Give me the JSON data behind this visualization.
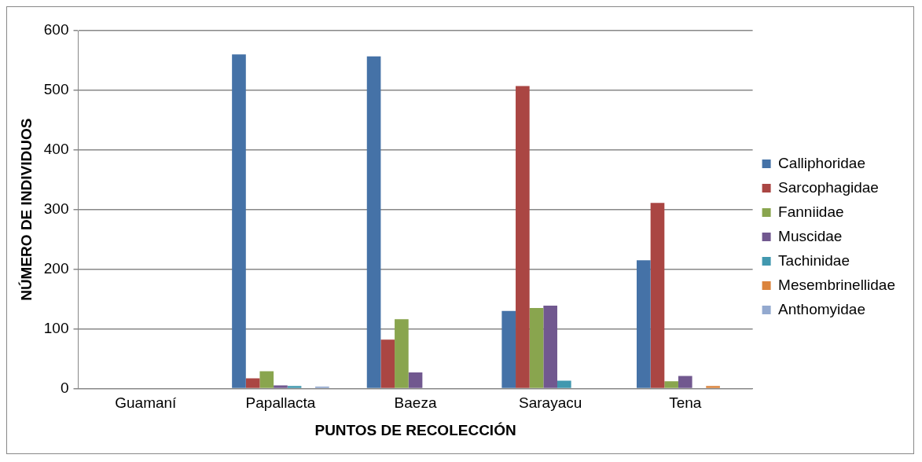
{
  "chart_data": {
    "type": "bar",
    "xlabel": "PUNTOS DE RECOLECCIÓN",
    "ylabel": "NÚMERO DE INDIVIDUOS",
    "categories": [
      "Guamaní",
      "Papallacta",
      "Baeza",
      "Sarayacu",
      "Tena"
    ],
    "series": [
      {
        "name": "Calliphoridae",
        "color": "#4572a7",
        "values": [
          1,
          560,
          557,
          130,
          215
        ]
      },
      {
        "name": "Sarcophagidae",
        "color": "#aa4643",
        "values": [
          0,
          17,
          82,
          507,
          311
        ]
      },
      {
        "name": "Fanniidae",
        "color": "#89a54e",
        "values": [
          0,
          29,
          116,
          135,
          12
        ]
      },
      {
        "name": "Muscidae",
        "color": "#71588f",
        "values": [
          1,
          5,
          27,
          139,
          21
        ]
      },
      {
        "name": "Tachinidae",
        "color": "#4198af",
        "values": [
          0,
          4,
          1,
          13,
          1
        ]
      },
      {
        "name": "Mesembrinellidae",
        "color": "#db843d",
        "values": [
          0,
          0,
          0,
          1,
          4
        ]
      },
      {
        "name": "Anthomyidae",
        "color": "#93a9cf",
        "values": [
          0,
          3,
          0,
          0,
          0
        ]
      }
    ],
    "ylim": [
      0,
      600
    ],
    "yticks": [
      0,
      100,
      200,
      300,
      400,
      500,
      600
    ],
    "grid": "y",
    "legend": "right"
  }
}
